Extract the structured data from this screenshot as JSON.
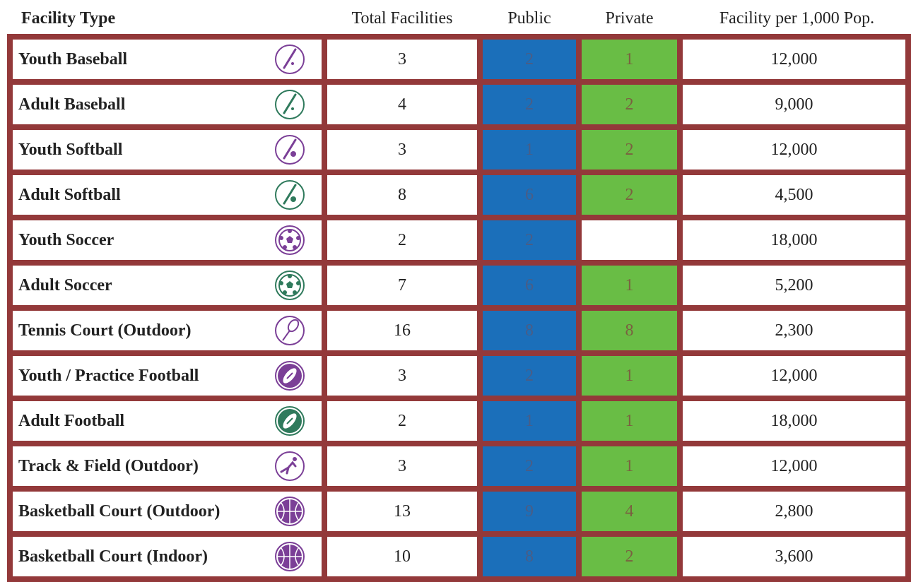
{
  "table": {
    "header": [
      "Facility Type",
      "Total Facilities",
      "Public",
      "Private",
      "Facility per 1,000 Pop."
    ],
    "rows": [
      [
        "Youth Baseball",
        3,
        2,
        1,
        "12,000"
      ],
      [
        "Adult Baseball",
        4,
        2,
        2,
        "9,000"
      ],
      [
        "Youth Softball",
        3,
        1,
        2,
        "12,000"
      ],
      [
        "Adult Softball",
        8,
        6,
        2,
        "4,500"
      ],
      [
        "Youth Soccer",
        2,
        2,
        null,
        "18,000"
      ],
      [
        "Adult Soccer",
        7,
        6,
        1,
        "5,200"
      ],
      [
        "Tennis Court (Outdoor)",
        16,
        8,
        8,
        "2,300"
      ],
      [
        "Youth / Practice Football",
        3,
        2,
        1,
        "12,000"
      ],
      [
        "Adult Football",
        2,
        1,
        1,
        "18,000"
      ],
      [
        "Track & Field (Outdoor)",
        3,
        2,
        1,
        "12,000"
      ],
      [
        "Basketball Court (Outdoor)",
        13,
        9,
        4,
        "2,800"
      ],
      [
        "Basketball Court (Indoor)",
        10,
        8,
        2,
        "3,600"
      ]
    ]
  }
}
